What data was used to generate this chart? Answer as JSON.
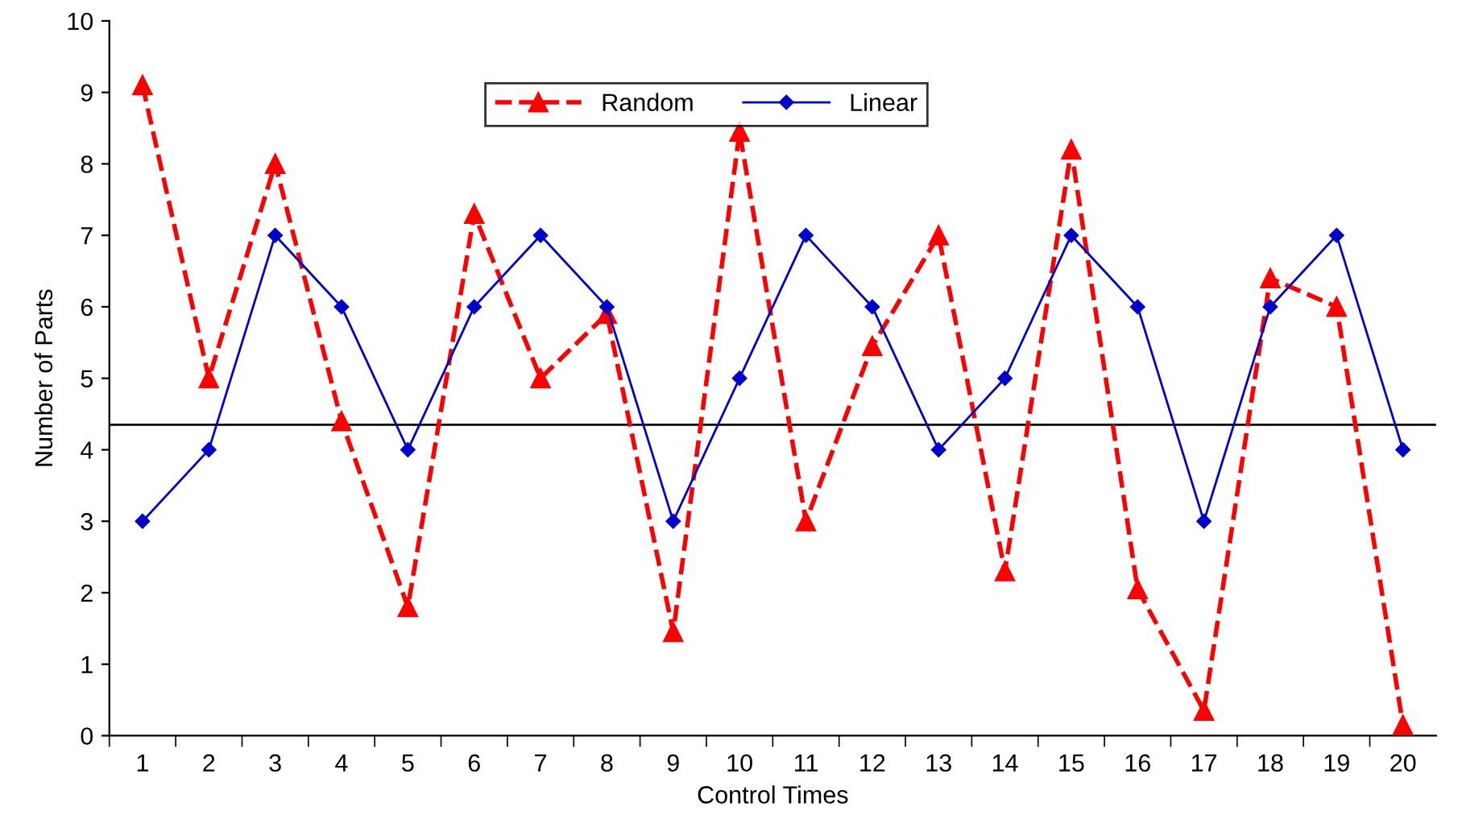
{
  "chart_data": {
    "type": "line",
    "xlabel": "Control Times",
    "ylabel": "Number of Parts",
    "categories": [
      "1",
      "2",
      "3",
      "4",
      "5",
      "6",
      "7",
      "8",
      "9",
      "10",
      "11",
      "12",
      "13",
      "14",
      "15",
      "16",
      "17",
      "18",
      "19",
      "20"
    ],
    "series": [
      {
        "name": "Random",
        "color": "#ff0000",
        "marker": "triangle",
        "line_style": "dashed",
        "values": [
          9.1,
          5.0,
          8.0,
          4.4,
          1.8,
          7.3,
          5.0,
          5.9,
          1.45,
          8.45,
          3.0,
          5.45,
          7.0,
          2.3,
          8.2,
          2.05,
          0.35,
          6.4,
          6.0,
          0.15
        ]
      },
      {
        "name": "Linear",
        "color": "#0000cc",
        "marker": "diamond",
        "line_style": "solid",
        "values": [
          3,
          4,
          7,
          6,
          4,
          6,
          7,
          6,
          3,
          5,
          7,
          6,
          4,
          5,
          7,
          6,
          3,
          6,
          7,
          4
        ]
      }
    ],
    "ylim": [
      0,
      10
    ],
    "yticks": [
      0,
      1,
      2,
      3,
      4,
      5,
      6,
      7,
      8,
      9,
      10
    ],
    "ref_lines": [
      {
        "axis": "y",
        "value": 4.35,
        "color": "#000000",
        "line_style": "solid"
      }
    ],
    "legend": "top",
    "grid": false
  }
}
